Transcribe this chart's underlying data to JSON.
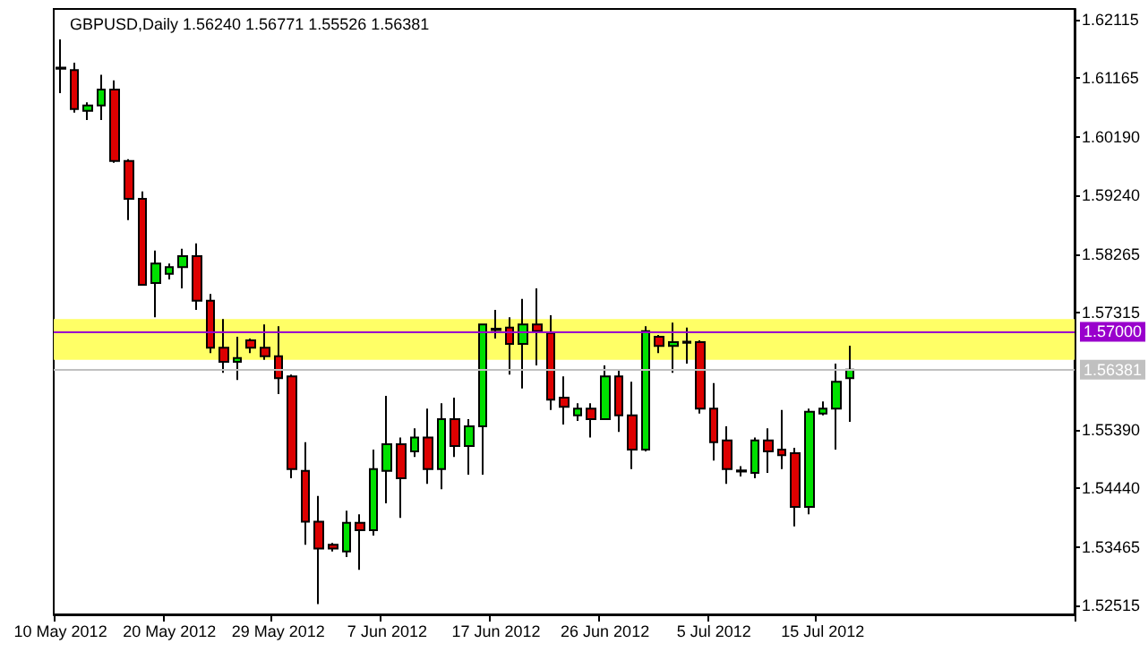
{
  "chart_data": {
    "type": "candlestick",
    "title": "GBPUSD,Daily 1.56240 1.56771 1.55526 1.56381",
    "categories": [
      "10 May 2012",
      null,
      null,
      null,
      null,
      null,
      null,
      null,
      "20 May 2012",
      null,
      null,
      null,
      null,
      null,
      null,
      null,
      "29 May 2012",
      null,
      null,
      null,
      null,
      null,
      null,
      null,
      "7 Jun 2012",
      null,
      null,
      null,
      null,
      null,
      null,
      null,
      "17 Jun 2012",
      null,
      null,
      null,
      null,
      null,
      null,
      null,
      "26 Jun 2012",
      null,
      null,
      null,
      null,
      null,
      null,
      null,
      "5 Jul 2012",
      null,
      null,
      null,
      null,
      null,
      null,
      null,
      "15 Jul 2012",
      null,
      null,
      null,
      null,
      null,
      null,
      null,
      null,
      null,
      null,
      null,
      null,
      null,
      null,
      null,
      null,
      null,
      null
    ],
    "series": [
      {
        "color": "#00e000",
        "ohlc": [
          [
            1.6131,
            1.6179,
            1.6091,
            1.6133
          ],
          null,
          [
            1.6062,
            1.6076,
            1.6047,
            1.6071
          ],
          [
            1.6071,
            1.6121,
            1.6047,
            1.6097
          ],
          null,
          null,
          null,
          [
            1.578,
            1.5833,
            1.5724,
            1.5812
          ],
          [
            1.5795,
            1.5812,
            1.5786,
            1.5806
          ],
          [
            1.5806,
            1.5836,
            1.5771,
            1.5824
          ],
          null,
          null,
          null,
          [
            1.5651,
            1.5692,
            1.5621,
            1.5657
          ],
          null,
          null,
          null,
          null,
          null,
          null,
          null,
          [
            1.534,
            1.5407,
            1.5331,
            1.5387
          ],
          null,
          [
            1.5375,
            1.5507,
            1.5366,
            1.5475
          ],
          [
            1.5472,
            1.5595,
            1.5419,
            1.5516
          ],
          null,
          [
            1.5504,
            1.5542,
            1.5495,
            1.5527
          ],
          null,
          [
            1.5475,
            1.5583,
            1.5442,
            1.5557
          ],
          null,
          [
            1.5513,
            1.5557,
            1.5466,
            1.5545
          ],
          [
            1.5545,
            1.5712,
            1.5466,
            1.5712
          ],
          [
            1.5703,
            1.5736,
            1.5689,
            1.5705
          ],
          null,
          [
            1.568,
            1.5754,
            1.5607,
            1.5712
          ],
          null,
          null,
          null,
          [
            1.5563,
            1.5583,
            1.5554,
            1.5574
          ],
          null,
          [
            1.5557,
            1.5645,
            1.5557,
            1.5627
          ],
          null,
          null,
          [
            1.5507,
            1.5709,
            1.5504,
            1.5701
          ],
          null,
          [
            1.5677,
            1.5715,
            1.5633,
            1.5683
          ],
          [
            1.5682,
            1.5707,
            1.5648,
            1.5684
          ],
          null,
          null,
          null,
          [
            1.5471,
            1.548,
            1.5463,
            1.5473
          ],
          [
            1.5469,
            1.5527,
            1.546,
            1.5522
          ],
          null,
          null,
          null,
          [
            1.5413,
            1.5574,
            1.5401,
            1.5569
          ],
          [
            1.5566,
            1.5586,
            1.5563,
            1.5574
          ],
          [
            1.5574,
            1.5648,
            1.5507,
            1.5618
          ],
          [
            1.5624,
            1.56771,
            1.55526,
            1.56381
          ],
          null,
          null,
          null,
          null,
          null,
          null,
          null,
          null,
          null,
          null,
          null,
          null,
          null,
          null,
          null,
          null
        ]
      },
      {
        "color": "#dd0000",
        "ohlc": [
          null,
          [
            1.6129,
            1.6141,
            1.6059,
            1.6065
          ],
          null,
          null,
          [
            1.6097,
            1.6112,
            1.5977,
            1.598
          ],
          [
            1.598,
            1.5983,
            1.5883,
            1.5918
          ],
          [
            1.5918,
            1.593,
            1.5777,
            1.5777
          ],
          null,
          null,
          null,
          [
            1.5824,
            1.5845,
            1.5736,
            1.5751
          ],
          [
            1.5751,
            1.5762,
            1.5665,
            1.5674
          ],
          [
            1.5674,
            1.5721,
            1.5633,
            1.5651
          ],
          null,
          [
            1.5686,
            1.5689,
            1.5665,
            1.5674
          ],
          [
            1.5674,
            1.5712,
            1.5654,
            1.566
          ],
          [
            1.566,
            1.5709,
            1.5598,
            1.5624
          ],
          [
            1.5627,
            1.563,
            1.546,
            1.5475
          ],
          [
            1.5472,
            1.5519,
            1.5351,
            1.5389
          ],
          [
            1.5389,
            1.5431,
            1.5254,
            1.5345
          ],
          [
            1.5351,
            1.5354,
            1.534,
            1.5345
          ],
          null,
          [
            1.5387,
            1.5401,
            1.531,
            1.5375
          ],
          null,
          null,
          [
            1.5516,
            1.5527,
            1.5395,
            1.546
          ],
          null,
          [
            1.5527,
            1.5574,
            1.5451,
            1.5475
          ],
          null,
          [
            1.5557,
            1.5592,
            1.5495,
            1.5513
          ],
          null,
          null,
          null,
          [
            1.5707,
            1.5724,
            1.563,
            1.568
          ],
          null,
          [
            1.5712,
            1.5771,
            1.5645,
            1.5701
          ],
          [
            1.5698,
            1.5727,
            1.5572,
            1.5589
          ],
          [
            1.5592,
            1.5627,
            1.5548,
            1.5577
          ],
          null,
          [
            1.5574,
            1.5583,
            1.5527,
            1.5557
          ],
          null,
          [
            1.5627,
            1.5636,
            1.5536,
            1.5563
          ],
          [
            1.5563,
            1.5618,
            1.5475,
            1.5507
          ],
          null,
          [
            1.5692,
            1.5695,
            1.5665,
            1.5677
          ],
          null,
          null,
          [
            1.5683,
            1.5686,
            1.5566,
            1.5574
          ],
          [
            1.5574,
            1.5616,
            1.5489,
            1.5519
          ],
          [
            1.5522,
            1.5545,
            1.5451,
            1.5475
          ],
          null,
          null,
          [
            1.5522,
            1.5542,
            1.5469,
            1.5504
          ],
          [
            1.5507,
            1.5572,
            1.5475,
            1.5498
          ],
          [
            1.5501,
            1.551,
            1.5381,
            1.5413
          ],
          null,
          null,
          null,
          null,
          null,
          null,
          null,
          null,
          null,
          null,
          null,
          null,
          null,
          null,
          null,
          null,
          null,
          null,
          null,
          null
        ]
      }
    ],
    "ylim": [
      1.5237,
      1.6229
    ],
    "yticks": [
      1.62115,
      1.61165,
      {
        "value": 1.6019,
        "label": "1.60190"
      },
      {
        "value": 1.5924,
        "label": "1.59240"
      },
      1.58265,
      1.57315,
      {
        "value": 1.5539,
        "label": "1.55390"
      },
      {
        "value": 1.5444,
        "label": "1.54440"
      },
      1.53465,
      1.52515
    ],
    "ref_lines": [
      {
        "axis": "y",
        "value": 1.57,
        "label": "1.57000",
        "color": "#9900cc"
      },
      {
        "axis": "y",
        "value": 1.56381,
        "label": "1.56381",
        "color": "#c0c0c0"
      }
    ],
    "bands": [
      {
        "axis": "y",
        "from": 1.5654,
        "to": 1.5721,
        "color": "#ffff66"
      }
    ],
    "grid": false
  }
}
